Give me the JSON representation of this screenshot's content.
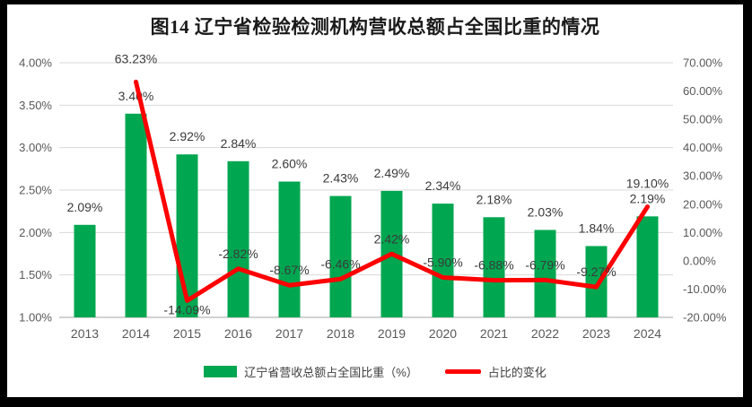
{
  "chart_data": {
    "type": "bar",
    "combo": "bar+line",
    "title": "图14 辽宁省检验检测机构营收总额占全国比重的情况",
    "categories": [
      "2013",
      "2014",
      "2015",
      "2016",
      "2017",
      "2018",
      "2019",
      "2020",
      "2021",
      "2022",
      "2023",
      "2024"
    ],
    "series": [
      {
        "name": "辽宁省营收总额占全国比重（%）",
        "type": "bar",
        "axis": "left",
        "color": "#00A750",
        "values": [
          2.09,
          3.4,
          2.92,
          2.84,
          2.6,
          2.43,
          2.49,
          2.34,
          2.18,
          2.03,
          1.84,
          2.19
        ],
        "labels": [
          "2.09%",
          "3.40%",
          "2.92%",
          "2.84%",
          "2.60%",
          "2.43%",
          "2.49%",
          "2.34%",
          "2.18%",
          "2.03%",
          "1.84%",
          "2.19%"
        ]
      },
      {
        "name": "占比的变化",
        "type": "line",
        "axis": "right",
        "color": "#FE0000",
        "values": [
          null,
          63.23,
          -14.09,
          -2.82,
          -8.67,
          -6.46,
          2.42,
          -5.9,
          -6.88,
          -6.79,
          -9.27,
          19.1
        ],
        "labels": [
          null,
          "63.23%",
          "-14.09%",
          "-2.82%",
          "-8.67%",
          "-6.46%",
          "2.42%",
          "-5.90%",
          "-6.88%",
          "-6.79%",
          "-9.27%",
          "19.10%"
        ],
        "label_positions": [
          null,
          "high-above",
          "below",
          "above",
          "above",
          "above",
          "above",
          "above",
          "above",
          "above",
          "above",
          "high-above"
        ]
      }
    ],
    "left_axis": {
      "min": 1,
      "max": 4,
      "step": 0.5,
      "tick_labels": [
        "4.00%",
        "3.50%",
        "3.00%",
        "2.50%",
        "2.00%",
        "1.50%",
        "1.00%"
      ]
    },
    "right_axis": {
      "min": -20,
      "max": 70,
      "step": 10,
      "tick_labels": [
        "70.00%",
        "60.00%",
        "50.00%",
        "40.00%",
        "30.00%",
        "20.00%",
        "10.00%",
        "0.00%",
        "-10.00%",
        "-20.00%"
      ]
    },
    "grid": true,
    "legend_position": "bottom"
  },
  "styles": {
    "frame_color": "#000000",
    "panel_color": "#ffffff",
    "grid_color": "#DADADA",
    "axis_line_color": "#C3C3C3",
    "tick_label_color": "#595959",
    "data_label_color": "#3a3a3a"
  }
}
